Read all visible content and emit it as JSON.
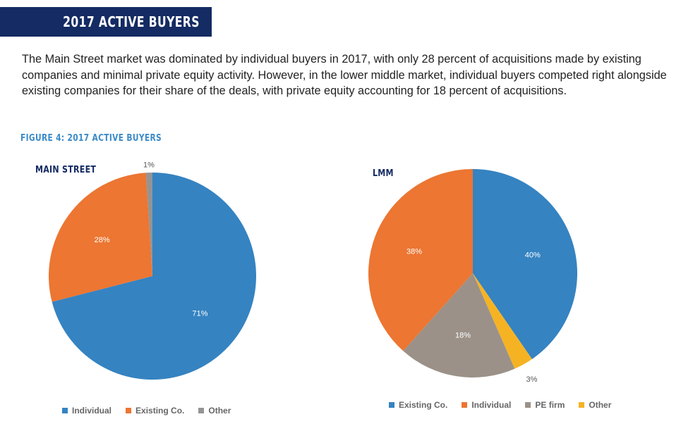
{
  "header": {
    "title": "2017 ACTIVE BUYERS",
    "banner_color": "#142b63"
  },
  "intro": {
    "text": "The Main Street market was dominated by individual buyers in 2017, with only 28 percent of acquisitions made by existing companies and minimal private equity activity. However, in the lower middle market, individual buyers competed right alongside existing companies for their share of the deals, with private equity accounting for 18 percent of acquisitions."
  },
  "figure": {
    "label": "FIGURE 4: 2017 ACTIVE BUYERS"
  },
  "chart_data": [
    {
      "type": "pie",
      "title": "MAIN STREET",
      "slices": [
        {
          "name": "Individual",
          "value": 71,
          "label": "71%",
          "color": "#3583c1"
        },
        {
          "name": "Existing Co.",
          "value": 28,
          "label": "28%",
          "color": "#ec7632"
        },
        {
          "name": "Other",
          "value": 1,
          "label": "1%",
          "color": "#949494"
        }
      ],
      "legend": [
        {
          "name": "Individual",
          "color": "#3583c1"
        },
        {
          "name": "Existing Co.",
          "color": "#ec7632"
        },
        {
          "name": "Other",
          "color": "#949494"
        }
      ]
    },
    {
      "type": "pie",
      "title": "LMM",
      "slices": [
        {
          "name": "Existing Co.",
          "value": 40,
          "label": "40%",
          "color": "#3583c1"
        },
        {
          "name": "Other",
          "value": 3,
          "label": "3%",
          "color": "#f5b324"
        },
        {
          "name": "PE firm",
          "value": 18,
          "label": "18%",
          "color": "#9b9188"
        },
        {
          "name": "Individual",
          "value": 38,
          "label": "38%",
          "color": "#ec7632"
        }
      ],
      "legend": [
        {
          "name": "Existing Co.",
          "color": "#3583c1"
        },
        {
          "name": "Individual",
          "color": "#ec7632"
        },
        {
          "name": "PE firm",
          "color": "#9b9188"
        },
        {
          "name": "Other",
          "color": "#f5b324"
        }
      ]
    }
  ]
}
